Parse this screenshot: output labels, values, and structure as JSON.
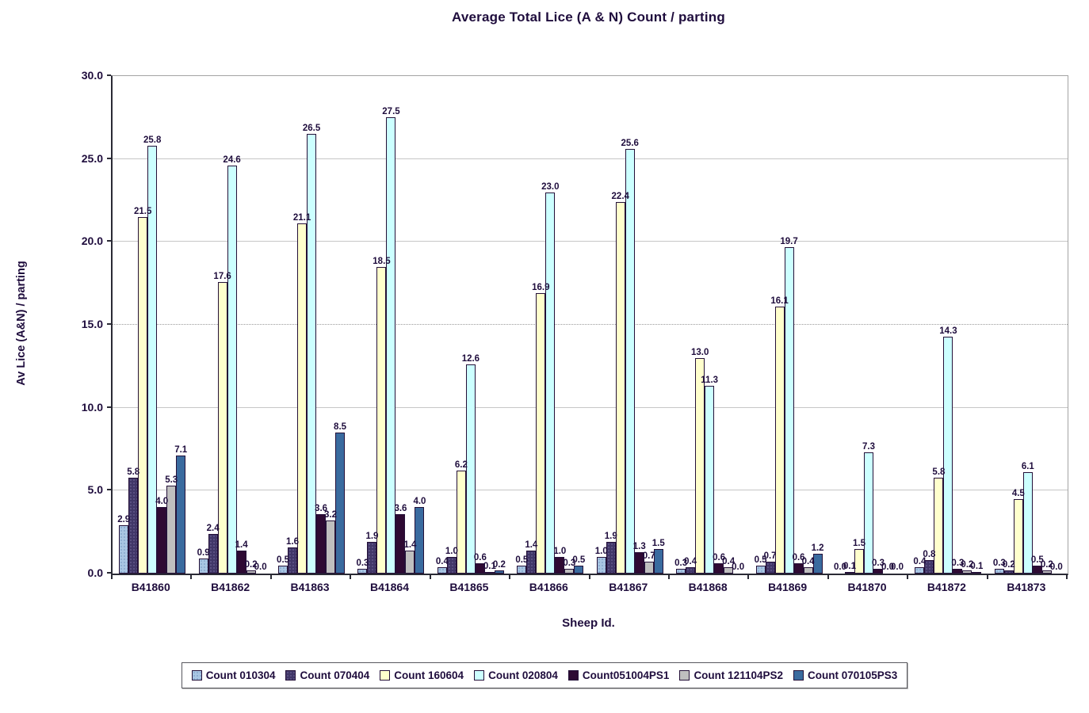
{
  "chart_data": {
    "type": "bar",
    "title": "Average Total Lice (A & N) Count / parting",
    "xlabel": "Sheep Id.",
    "ylabel": "Av Lice (A&N) / parting",
    "ylim": [
      0,
      30
    ],
    "yticks": [
      "0.0",
      "5.0",
      "10.0",
      "15.0",
      "20.0",
      "25.0",
      "30.0"
    ],
    "grid": true,
    "legend_position": "bottom",
    "value_labels": true,
    "value_label_format": "0.0",
    "categories": [
      "B41860",
      "B41862",
      "B41863",
      "B41864",
      "B41865",
      "B41866",
      "B41867",
      "B41868",
      "B41869",
      "B41870",
      "B41872",
      "B41873"
    ],
    "series": [
      {
        "name": "Count 010304",
        "color": "#a9c6e3",
        "pattern": "dots-dark",
        "values": [
          2.9,
          0.9,
          0.5,
          0.3,
          0.4,
          0.5,
          1.0,
          0.3,
          0.5,
          0.0,
          0.4,
          0.3
        ]
      },
      {
        "name": "Count 070404",
        "color": "#413768",
        "pattern": "dots-light",
        "values": [
          5.8,
          2.4,
          1.6,
          1.9,
          1.0,
          1.4,
          1.9,
          0.4,
          0.7,
          0.1,
          0.8,
          0.2
        ]
      },
      {
        "name": "Count 160604",
        "color": "#ffffcc",
        "pattern": "none",
        "values": [
          21.5,
          17.6,
          21.1,
          18.5,
          6.2,
          16.9,
          22.4,
          13.0,
          16.1,
          1.5,
          5.8,
          4.5
        ]
      },
      {
        "name": "Count 020804",
        "color": "#ccffff",
        "pattern": "none",
        "values": [
          25.8,
          24.6,
          26.5,
          27.5,
          12.6,
          23.0,
          25.6,
          11.3,
          19.7,
          7.3,
          14.3,
          6.1
        ]
      },
      {
        "name": "Count051004PS1",
        "color": "#2e0a33",
        "pattern": "none",
        "values": [
          4.0,
          1.4,
          3.6,
          3.6,
          0.6,
          1.0,
          1.3,
          0.6,
          0.6,
          0.3,
          0.3,
          0.5
        ]
      },
      {
        "name": "Count 121104PS2",
        "color": "#bfbfbf",
        "pattern": "none",
        "values": [
          5.3,
          0.2,
          3.2,
          1.4,
          0.1,
          0.3,
          0.7,
          0.4,
          0.4,
          0.0,
          0.2,
          0.2
        ]
      },
      {
        "name": "Count 070105PS3",
        "color": "#3a6b9f",
        "pattern": "none",
        "values": [
          7.1,
          0.0,
          8.5,
          4.0,
          0.2,
          0.5,
          1.5,
          0.0,
          1.2,
          0.0,
          0.1,
          0.0
        ]
      }
    ]
  },
  "colors": {
    "text": "#1f0d3d",
    "grid": "#c6c6c6",
    "axis": "#2a2a35",
    "plot_border": "#a3a3a3",
    "bar_border": "#241038",
    "background": "#ffffff"
  }
}
